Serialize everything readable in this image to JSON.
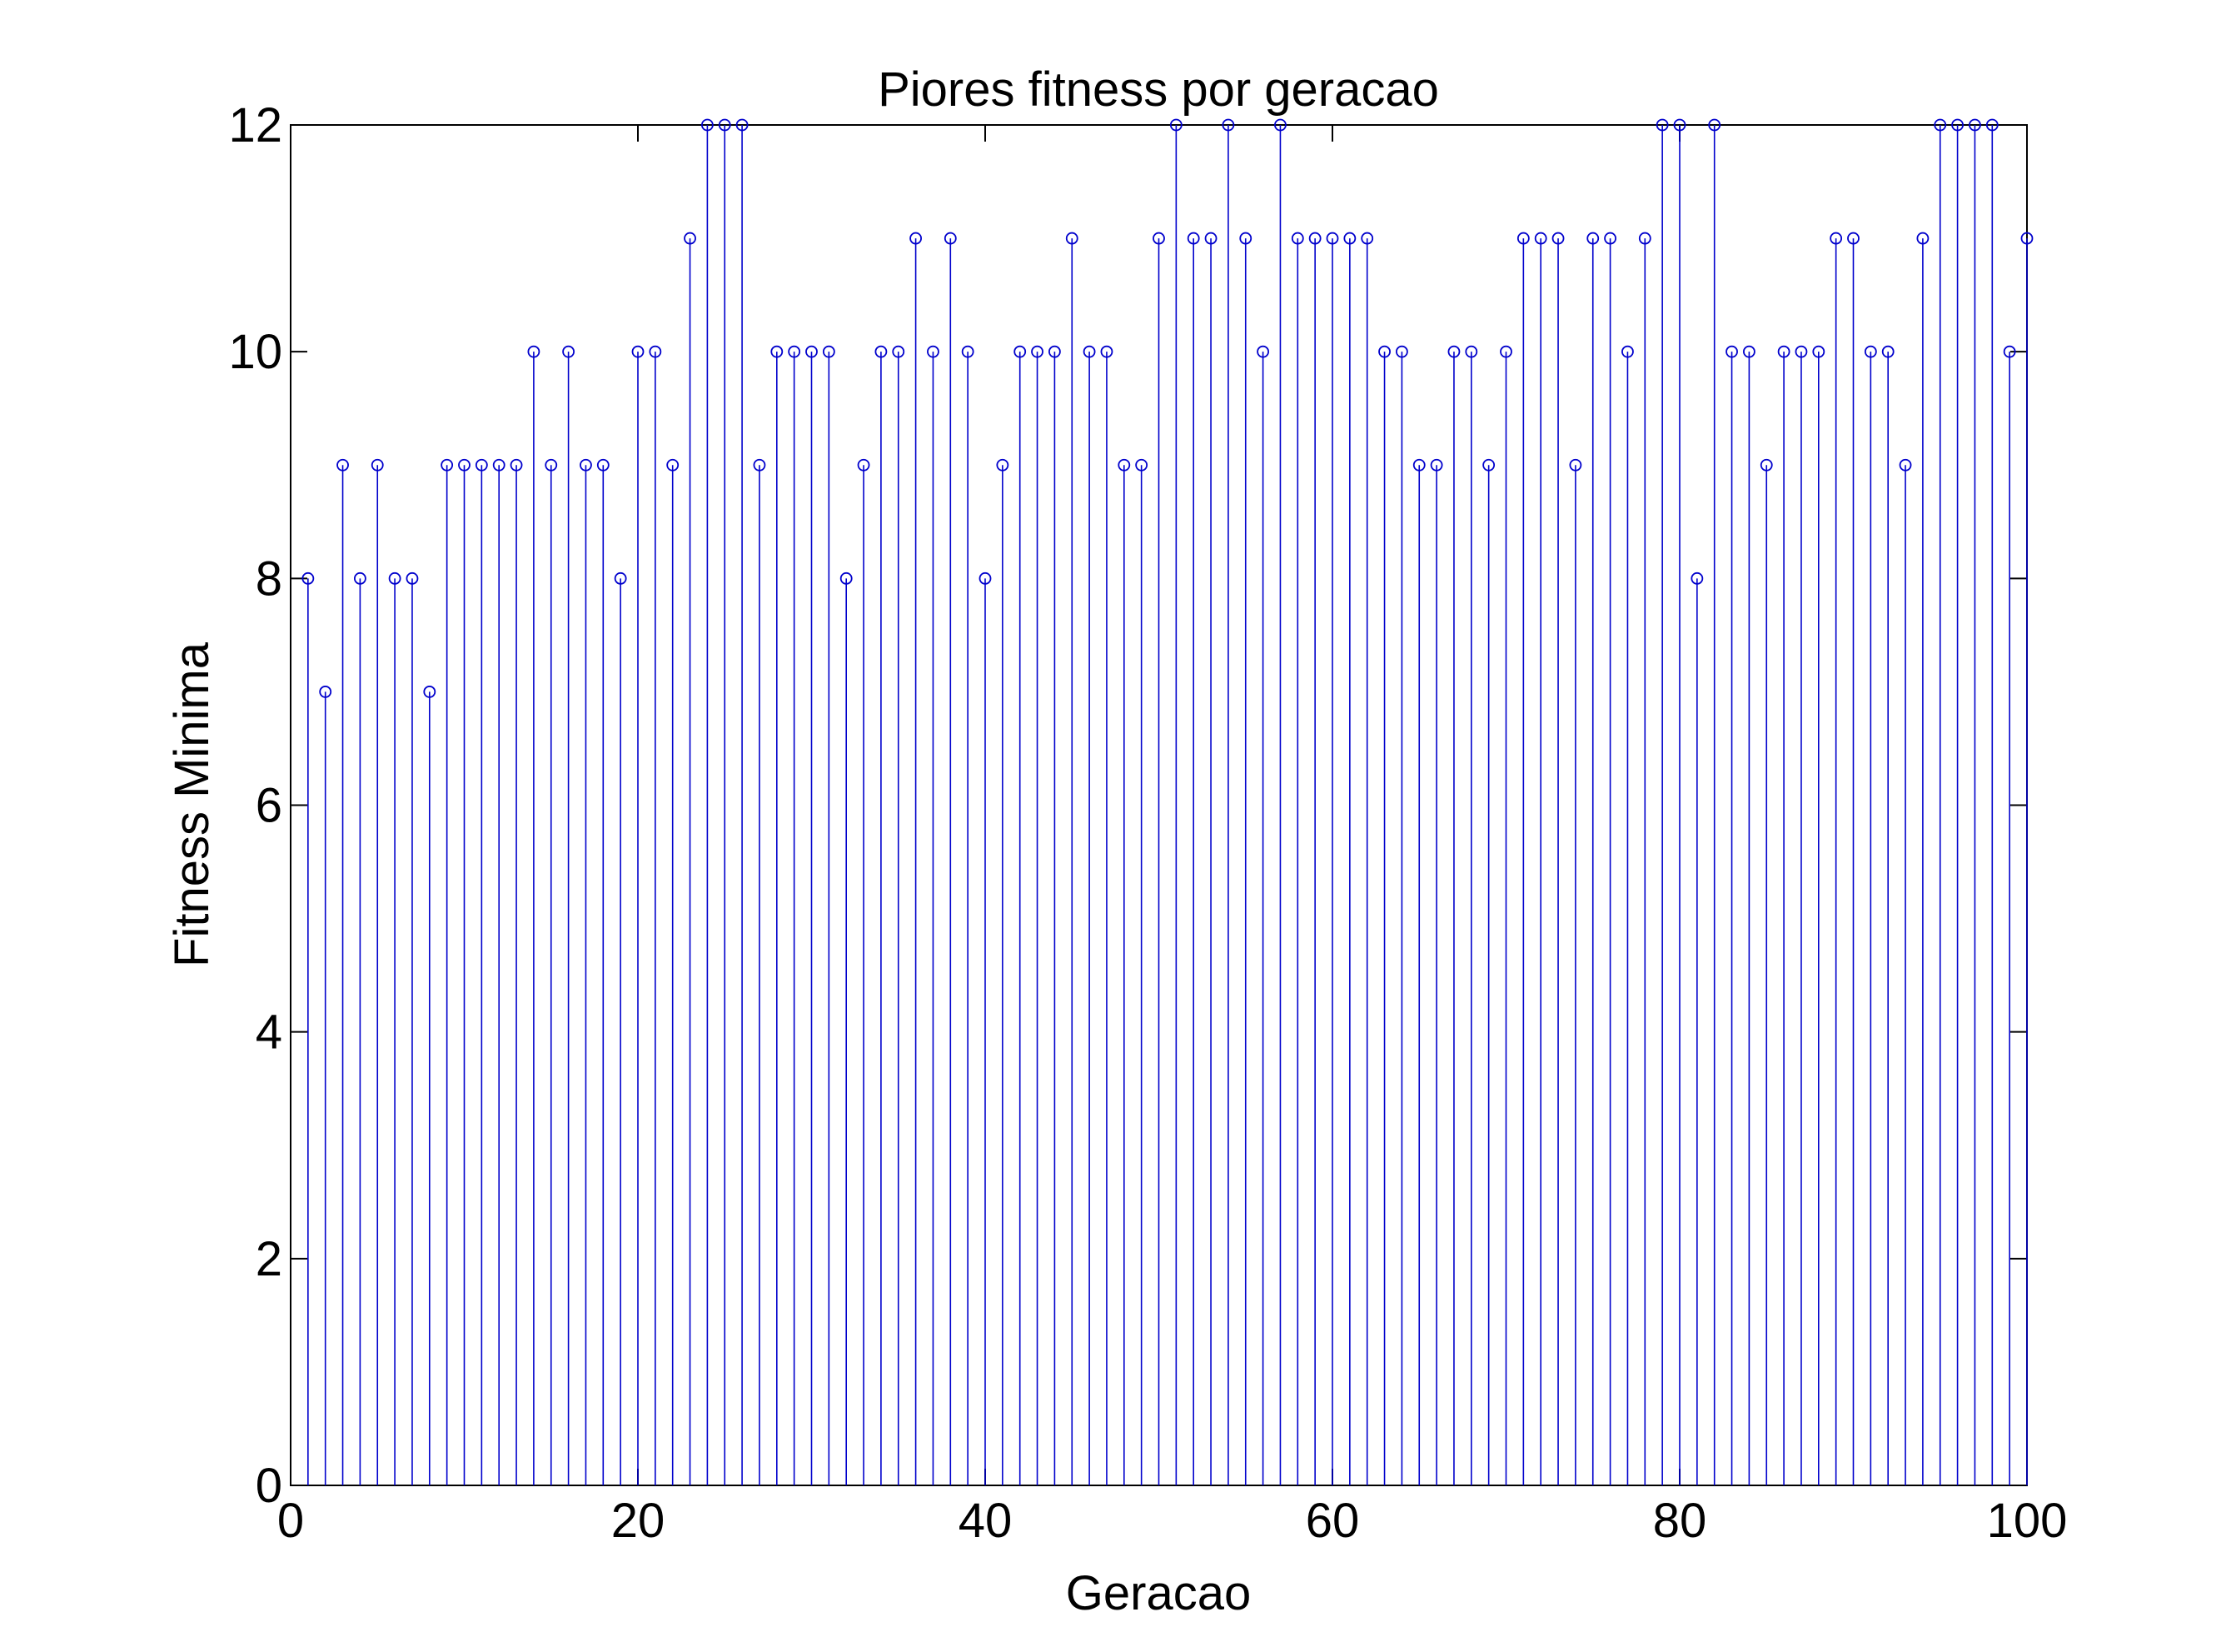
{
  "chart_data": {
    "type": "stem",
    "title": "Piores fitness por geracao",
    "xlabel": "Geracao",
    "ylabel": "Fitness Minima",
    "xlim": [
      0,
      100
    ],
    "ylim": [
      0,
      12
    ],
    "xticks": [
      "0",
      "20",
      "40",
      "60",
      "80",
      "100"
    ],
    "yticks": [
      "0",
      "2",
      "4",
      "6",
      "8",
      "10",
      "12"
    ],
    "grid": false,
    "x": [
      1,
      2,
      3,
      4,
      5,
      6,
      7,
      8,
      9,
      10,
      11,
      12,
      13,
      14,
      15,
      16,
      17,
      18,
      19,
      20,
      21,
      22,
      23,
      24,
      25,
      26,
      27,
      28,
      29,
      30,
      31,
      32,
      33,
      34,
      35,
      36,
      37,
      38,
      39,
      40,
      41,
      42,
      43,
      44,
      45,
      46,
      47,
      48,
      49,
      50,
      51,
      52,
      53,
      54,
      55,
      56,
      57,
      58,
      59,
      60,
      61,
      62,
      63,
      64,
      65,
      66,
      67,
      68,
      69,
      70,
      71,
      72,
      73,
      74,
      75,
      76,
      77,
      78,
      79,
      80,
      81,
      82,
      83,
      84,
      85,
      86,
      87,
      88,
      89,
      90,
      91,
      92,
      93,
      94,
      95,
      96,
      97,
      98,
      99,
      100
    ],
    "values": [
      8,
      7,
      9,
      8,
      9,
      8,
      8,
      7,
      9,
      9,
      9,
      9,
      9,
      10,
      9,
      10,
      9,
      9,
      8,
      10,
      10,
      9,
      11,
      12,
      12,
      12,
      9,
      10,
      10,
      10,
      10,
      8,
      9,
      10,
      10,
      11,
      10,
      11,
      10,
      8,
      9,
      10,
      10,
      10,
      11,
      10,
      10,
      9,
      9,
      11,
      12,
      11,
      11,
      12,
      11,
      10,
      12,
      11,
      11,
      11,
      11,
      11,
      10,
      10,
      9,
      9,
      10,
      10,
      9,
      10,
      11,
      11,
      11,
      9,
      11,
      11,
      10,
      11,
      12,
      12,
      8,
      12,
      10,
      10,
      9,
      10,
      10,
      10,
      11,
      11,
      10,
      10,
      9,
      11,
      12,
      12,
      12,
      12,
      10,
      11
    ],
    "colors": {
      "stem": "#0000cc",
      "axes": "#000000",
      "background": "#ffffff"
    }
  }
}
